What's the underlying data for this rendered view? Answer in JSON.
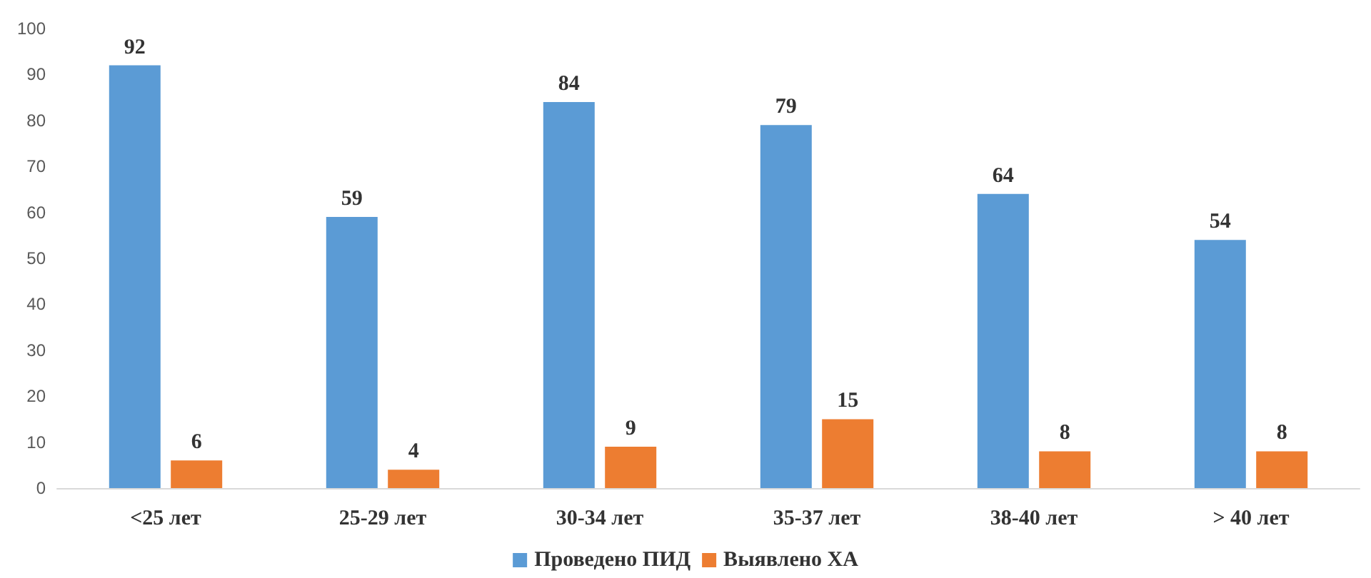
{
  "chart_data": {
    "type": "bar",
    "categories": [
      "<25 лет",
      "25-29 лет",
      "30-34 лет",
      "35-37 лет",
      "38-40 лет",
      "> 40 лет"
    ],
    "series": [
      {
        "name": "Проведено ПИД",
        "color": "#5b9bd5",
        "values": [
          92,
          59,
          84,
          79,
          64,
          54
        ]
      },
      {
        "name": "Выявлено ХА",
        "color": "#ed7d31",
        "values": [
          6,
          4,
          9,
          15,
          8,
          8
        ]
      }
    ],
    "ylim": [
      0,
      100
    ],
    "yticks": [
      0,
      10,
      20,
      30,
      40,
      50,
      60,
      70,
      80,
      90,
      100
    ],
    "grid": false,
    "legend": "bottom",
    "data_labels": true
  }
}
